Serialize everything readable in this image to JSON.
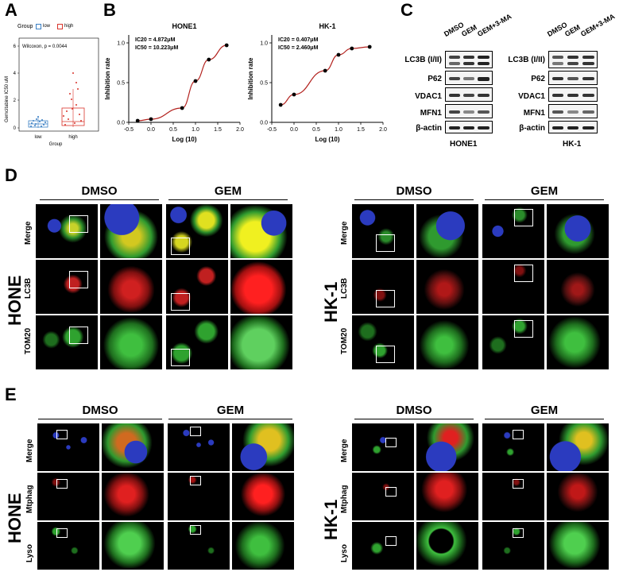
{
  "panels": {
    "A": "A",
    "B": "B",
    "C": "C",
    "D": "D",
    "E": "E"
  },
  "panelA": {
    "legend_title": "Group",
    "legend_low": "low",
    "legend_high": "high",
    "ylabel": "Gemcitabine IC50 uM",
    "xlabel": "Group",
    "stat": "Wilcoxon, p = 0.0044",
    "categories": [
      "low",
      "high"
    ],
    "yticks": [
      "0",
      "2",
      "4",
      "6"
    ],
    "colors": {
      "low": "#3a7fc4",
      "high": "#d9342b"
    }
  },
  "panelB": {
    "ylabel": "Inhibition rate",
    "xlabel": "Log (10)",
    "plots": [
      {
        "title": "HONE1",
        "ic20": "IC20 = 4.872μM",
        "ic50": "IC50 = 10.223μM"
      },
      {
        "title": "HK-1",
        "ic20": "IC20 = 0.407μM",
        "ic50": "IC50 = 2.460μM"
      }
    ],
    "xticks": [
      "-0.5",
      "0.0",
      "0.5",
      "1.0",
      "1.5",
      "2.0"
    ],
    "yticks": [
      "0.0",
      "0.5",
      "1.0"
    ],
    "curve_color": "#b3221e"
  },
  "chart_data": [
    {
      "type": "scatter",
      "title": "HONE1",
      "xlabel": "Log (10)",
      "ylabel": "Inhibition rate",
      "xlim": [
        -0.5,
        2.0
      ],
      "ylim": [
        0.0,
        1.1
      ],
      "x": [
        -0.3,
        0.0,
        0.7,
        1.0,
        1.3,
        1.7
      ],
      "y": [
        0.02,
        0.04,
        0.18,
        0.52,
        0.79,
        0.97
      ]
    },
    {
      "type": "scatter",
      "title": "HK-1",
      "xlabel": "Log (10)",
      "ylabel": "Inhibition rate",
      "xlim": [
        -0.5,
        2.0
      ],
      "ylim": [
        0.0,
        1.1
      ],
      "x": [
        -0.3,
        0.0,
        0.7,
        1.0,
        1.3,
        1.7
      ],
      "y": [
        0.22,
        0.35,
        0.65,
        0.85,
        0.93,
        0.95
      ]
    }
  ],
  "panelC": {
    "columns": [
      "DMSO",
      "GEM",
      "GEM+3-MA"
    ],
    "rows": [
      "LC3B (I/II)",
      "P62",
      "VDAC1",
      "MFN1",
      "β-actin"
    ],
    "cells": [
      "HONE1",
      "HK-1"
    ]
  },
  "panelD": {
    "conditions": [
      "DMSO",
      "GEM"
    ],
    "rows": [
      "Merge",
      "LC3B",
      "TOM20"
    ],
    "cells": [
      "HONE",
      "HK-1"
    ]
  },
  "panelE": {
    "conditions": [
      "DMSO",
      "GEM"
    ],
    "rows": [
      "Merge",
      "Mtphag",
      "Lyso"
    ],
    "cells": [
      "HONE",
      "HK-1"
    ]
  }
}
